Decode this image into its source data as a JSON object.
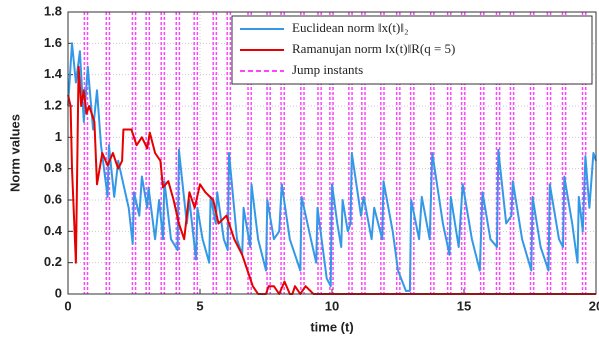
{
  "chart_data": {
    "type": "line",
    "xlabel": "time (t)",
    "ylabel": "Norm values",
    "xlim": [
      0,
      20
    ],
    "ylim": [
      0,
      1.8
    ],
    "xticks": [
      0,
      5,
      10,
      15,
      20
    ],
    "yticks": [
      0,
      0.2,
      0.4,
      0.6,
      0.8,
      1,
      1.2,
      1.4,
      1.6,
      1.8
    ],
    "grid": true,
    "legend": "upper right",
    "series": [
      {
        "name": "Euclidean norm ‖x(t)‖₂",
        "color": "#3399e6",
        "x": [
          0,
          0.15,
          0.3,
          0.45,
          0.6,
          0.75,
          0.95,
          1.1,
          1.25,
          1.5,
          1.55,
          1.75,
          1.9,
          2.1,
          2.3,
          2.45,
          2.5,
          2.7,
          2.8,
          3.0,
          3.05,
          3.3,
          3.45,
          3.6,
          3.65,
          3.9,
          4.15,
          4.2,
          4.5,
          4.6,
          4.85,
          4.9,
          5.1,
          5.35,
          5.4,
          5.6,
          5.65,
          5.9,
          6.05,
          6.1,
          6.4,
          6.6,
          6.65,
          6.9,
          6.95,
          7.2,
          7.5,
          7.55,
          7.8,
          8.0,
          8.1,
          8.4,
          8.8,
          8.85,
          9.2,
          9.4,
          9.45,
          9.8,
          9.95,
          10.0,
          10.2,
          10.35,
          10.4,
          10.6,
          10.7,
          10.75,
          11.1,
          11.2,
          11.5,
          11.6,
          11.9,
          11.95,
          12.3,
          12.5,
          12.8,
          12.95,
          13.0,
          13.3,
          13.4,
          13.7,
          13.8,
          14.2,
          14.45,
          14.5,
          14.8,
          14.95,
          15.3,
          15.6,
          15.7,
          16.0,
          16.25,
          16.3,
          16.6,
          16.8,
          16.85,
          17.2,
          17.55,
          17.6,
          17.9,
          18.2,
          18.25,
          18.6,
          18.75,
          18.8,
          19.1,
          19.3,
          19.35,
          19.5,
          19.6,
          19.75,
          19.9,
          20.0
        ],
        "values": [
          1.2,
          1.6,
          1.35,
          1.55,
          1.1,
          1.45,
          1.05,
          1.3,
          0.95,
          0.62,
          0.95,
          0.62,
          0.85,
          0.7,
          0.55,
          0.32,
          0.65,
          0.5,
          0.75,
          0.55,
          0.68,
          0.35,
          0.6,
          0.35,
          0.72,
          0.35,
          0.28,
          0.92,
          0.45,
          0.6,
          0.22,
          0.55,
          0.35,
          0.2,
          0.62,
          0.45,
          0.65,
          0.35,
          0.28,
          0.9,
          0.35,
          0.25,
          0.55,
          0.3,
          0.7,
          0.35,
          0.15,
          0.6,
          0.35,
          0.4,
          0.7,
          0.35,
          0.15,
          0.62,
          0.35,
          0.2,
          0.55,
          0.1,
          0.05,
          0.7,
          0.45,
          0.3,
          0.6,
          0.4,
          0.45,
          0.9,
          0.5,
          0.62,
          0.35,
          0.55,
          0.35,
          0.72,
          0.4,
          0.15,
          0.02,
          0.02,
          0.6,
          0.35,
          0.62,
          0.35,
          0.9,
          0.45,
          0.25,
          0.62,
          0.3,
          0.7,
          0.35,
          0.15,
          0.65,
          0.35,
          0.3,
          0.92,
          0.45,
          0.5,
          0.72,
          0.35,
          0.15,
          0.62,
          0.3,
          0.15,
          0.7,
          0.35,
          0.3,
          0.75,
          0.45,
          0.2,
          0.62,
          0.4,
          0.88,
          0.55,
          0.9,
          0.85
        ]
      },
      {
        "name": "Ramanujan norm ‖x(t)‖R(q = 5)",
        "color": "#e60000",
        "x": [
          0,
          0.1,
          0.15,
          0.3,
          0.4,
          0.5,
          0.6,
          0.7,
          0.8,
          1.0,
          1.1,
          1.3,
          1.5,
          1.7,
          1.9,
          2.05,
          2.1,
          2.4,
          2.6,
          2.8,
          3.0,
          3.1,
          3.3,
          3.5,
          3.6,
          3.8,
          4.0,
          4.2,
          4.4,
          4.6,
          4.8,
          5.0,
          5.2,
          5.5,
          5.7,
          6.0,
          6.3,
          6.6,
          6.8,
          7.0,
          7.2,
          7.5,
          7.6,
          7.8,
          8.0,
          8.2,
          8.4,
          8.5,
          8.6,
          8.8,
          9.0,
          9.3,
          20
        ],
        "values": [
          1.27,
          1.2,
          0.8,
          0.2,
          1.45,
          1.2,
          1.3,
          1.15,
          1.2,
          1.1,
          0.7,
          0.9,
          0.82,
          0.9,
          0.8,
          0.85,
          1.05,
          1.05,
          0.95,
          1.0,
          0.93,
          1.03,
          0.9,
          0.85,
          0.68,
          0.72,
          0.6,
          0.45,
          0.35,
          0.65,
          0.55,
          0.7,
          0.65,
          0.6,
          0.45,
          0.5,
          0.35,
          0.25,
          0.15,
          0.05,
          0,
          0,
          0.05,
          0.05,
          0,
          0.08,
          0,
          0,
          0.05,
          0,
          0.05,
          0,
          0
        ]
      },
      {
        "name": "Jump instants",
        "color": "#ff44ff",
        "kind": "vline",
        "x": [
          0.62,
          0.74,
          1.45,
          1.57,
          2.44,
          2.56,
          2.96,
          3.08,
          3.53,
          3.65,
          4.1,
          4.22,
          4.78,
          4.9,
          5.5,
          5.62,
          6.03,
          6.15,
          6.82,
          6.94,
          7.54,
          7.66,
          8.07,
          8.19,
          8.82,
          8.94,
          9.47,
          9.59,
          9.92,
          10.04,
          10.64,
          10.76,
          11.13,
          11.25,
          11.85,
          11.97,
          12.45,
          12.57,
          12.98,
          13.1,
          13.74,
          13.86,
          14.38,
          14.5,
          14.91,
          15.03,
          15.63,
          15.75,
          16.23,
          16.35,
          16.76,
          16.88,
          17.52,
          17.64,
          18.16,
          18.28,
          18.73,
          18.85,
          19.49,
          19.61
        ]
      }
    ]
  }
}
